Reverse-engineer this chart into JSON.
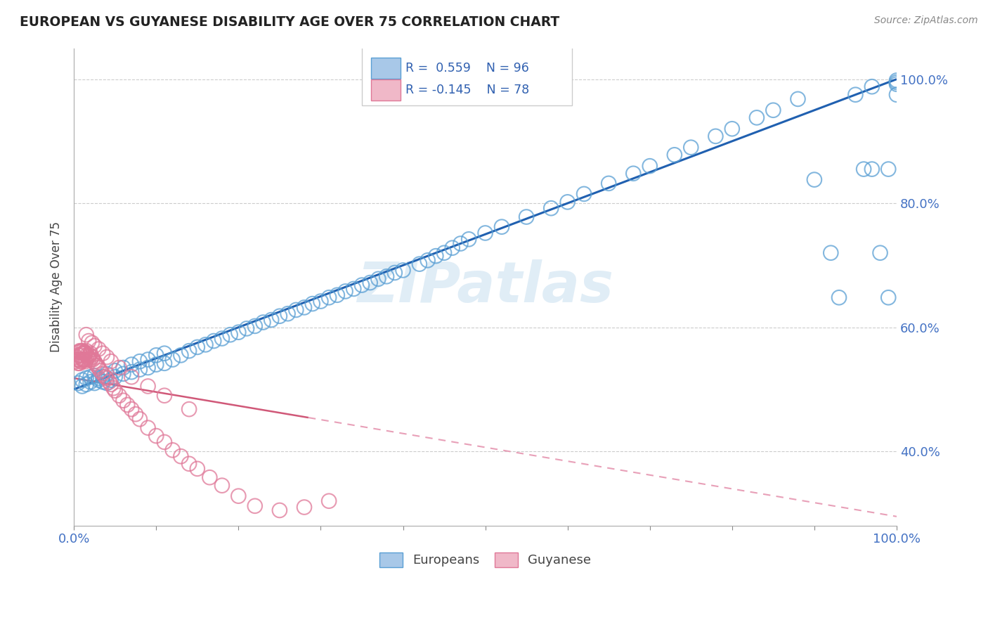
{
  "title": "EUROPEAN VS GUYANESE DISABILITY AGE OVER 75 CORRELATION CHART",
  "source": "Source: ZipAtlas.com",
  "ylabel": "Disability Age Over 75",
  "xlim": [
    0.0,
    1.0
  ],
  "ylim": [
    0.28,
    1.05
  ],
  "y_ticks": [
    0.4,
    0.6,
    0.8,
    1.0
  ],
  "y_tick_labels": [
    "40.0%",
    "60.0%",
    "80.0%",
    "100.0%"
  ],
  "european_R": 0.559,
  "european_N": 96,
  "guyanese_R": -0.145,
  "guyanese_N": 78,
  "blue_marker_color": "#a8c8e8",
  "blue_edge_color": "#5a9fd4",
  "pink_marker_color": "#f0b8c8",
  "pink_edge_color": "#e07898",
  "blue_line_color": "#2060b0",
  "pink_solid_line_color": "#d05878",
  "pink_dash_line_color": "#e8a0b8",
  "watermark_color": "#c8dff0",
  "eu_x": [
    0.005,
    0.01,
    0.01,
    0.015,
    0.015,
    0.02,
    0.02,
    0.025,
    0.025,
    0.03,
    0.03,
    0.035,
    0.035,
    0.04,
    0.04,
    0.045,
    0.05,
    0.05,
    0.06,
    0.06,
    0.07,
    0.07,
    0.08,
    0.08,
    0.09,
    0.09,
    0.1,
    0.1,
    0.11,
    0.11,
    0.12,
    0.13,
    0.14,
    0.15,
    0.16,
    0.17,
    0.18,
    0.19,
    0.2,
    0.21,
    0.22,
    0.23,
    0.24,
    0.25,
    0.26,
    0.27,
    0.28,
    0.29,
    0.3,
    0.31,
    0.32,
    0.33,
    0.34,
    0.35,
    0.36,
    0.37,
    0.38,
    0.39,
    0.4,
    0.42,
    0.43,
    0.44,
    0.45,
    0.46,
    0.47,
    0.48,
    0.5,
    0.52,
    0.55,
    0.58,
    0.6,
    0.62,
    0.65,
    0.68,
    0.7,
    0.73,
    0.75,
    0.78,
    0.8,
    0.83,
    0.85,
    0.88,
    0.9,
    0.92,
    0.93,
    0.95,
    0.96,
    0.97,
    0.97,
    0.98,
    0.99,
    0.99,
    1.0,
    1.0,
    1.0,
    1.0
  ],
  "eu_y": [
    0.51,
    0.505,
    0.515,
    0.508,
    0.518,
    0.512,
    0.52,
    0.51,
    0.522,
    0.515,
    0.518,
    0.512,
    0.52,
    0.51,
    0.525,
    0.515,
    0.52,
    0.53,
    0.525,
    0.535,
    0.528,
    0.54,
    0.532,
    0.545,
    0.535,
    0.548,
    0.54,
    0.555,
    0.542,
    0.558,
    0.548,
    0.555,
    0.562,
    0.568,
    0.572,
    0.578,
    0.582,
    0.588,
    0.592,
    0.598,
    0.602,
    0.608,
    0.612,
    0.618,
    0.622,
    0.628,
    0.632,
    0.638,
    0.642,
    0.648,
    0.652,
    0.658,
    0.662,
    0.668,
    0.672,
    0.678,
    0.682,
    0.688,
    0.692,
    0.702,
    0.708,
    0.715,
    0.72,
    0.728,
    0.735,
    0.742,
    0.752,
    0.762,
    0.778,
    0.792,
    0.802,
    0.815,
    0.832,
    0.848,
    0.86,
    0.878,
    0.89,
    0.908,
    0.92,
    0.938,
    0.95,
    0.968,
    0.838,
    0.72,
    0.648,
    0.975,
    0.855,
    0.988,
    0.855,
    0.72,
    0.648,
    0.855,
    0.975,
    0.992,
    0.995,
    0.998
  ],
  "gy_x": [
    0.002,
    0.003,
    0.004,
    0.005,
    0.005,
    0.006,
    0.006,
    0.007,
    0.007,
    0.008,
    0.008,
    0.009,
    0.009,
    0.01,
    0.01,
    0.011,
    0.011,
    0.012,
    0.012,
    0.013,
    0.013,
    0.014,
    0.014,
    0.015,
    0.015,
    0.016,
    0.017,
    0.018,
    0.019,
    0.02,
    0.02,
    0.022,
    0.023,
    0.025,
    0.026,
    0.028,
    0.03,
    0.032,
    0.035,
    0.038,
    0.04,
    0.043,
    0.045,
    0.048,
    0.05,
    0.055,
    0.06,
    0.065,
    0.07,
    0.075,
    0.08,
    0.09,
    0.1,
    0.11,
    0.12,
    0.13,
    0.14,
    0.15,
    0.165,
    0.18,
    0.2,
    0.22,
    0.25,
    0.28,
    0.31,
    0.015,
    0.018,
    0.022,
    0.025,
    0.03,
    0.035,
    0.04,
    0.045,
    0.055,
    0.07,
    0.09,
    0.11,
    0.14
  ],
  "gy_y": [
    0.545,
    0.552,
    0.548,
    0.555,
    0.542,
    0.56,
    0.548,
    0.562,
    0.542,
    0.555,
    0.545,
    0.562,
    0.545,
    0.558,
    0.548,
    0.562,
    0.548,
    0.558,
    0.548,
    0.56,
    0.548,
    0.558,
    0.545,
    0.562,
    0.548,
    0.555,
    0.552,
    0.548,
    0.555,
    0.548,
    0.558,
    0.552,
    0.548,
    0.545,
    0.542,
    0.538,
    0.535,
    0.53,
    0.525,
    0.52,
    0.518,
    0.512,
    0.508,
    0.502,
    0.498,
    0.49,
    0.482,
    0.475,
    0.468,
    0.46,
    0.452,
    0.438,
    0.425,
    0.415,
    0.402,
    0.392,
    0.38,
    0.372,
    0.358,
    0.345,
    0.328,
    0.312,
    0.305,
    0.31,
    0.32,
    0.588,
    0.578,
    0.575,
    0.57,
    0.565,
    0.558,
    0.552,
    0.545,
    0.535,
    0.52,
    0.505,
    0.49,
    0.468
  ]
}
